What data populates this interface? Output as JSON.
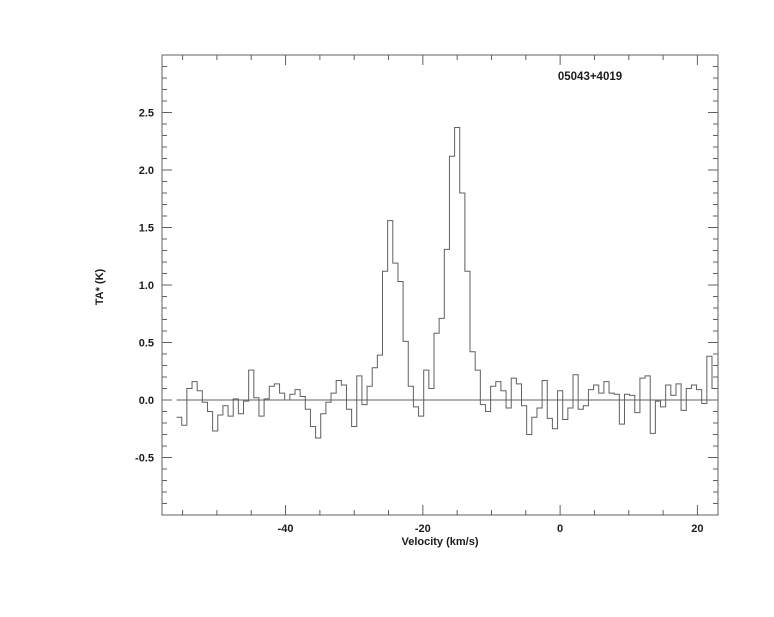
{
  "figure": {
    "background": "#ffffff",
    "line_color": "#606060",
    "axis_color": "#606060",
    "text_color": "#1c1c1c"
  },
  "chart_data": {
    "type": "line",
    "subtype": "histogram-step-spectrum",
    "title": "05043+4019",
    "xlabel": "Velocity (km/s)",
    "ylabel": "TA* (K)",
    "xlim": [
      -58,
      23
    ],
    "ylim": [
      -1.0,
      3.0
    ],
    "x_major_ticks": [
      -40,
      -20,
      0,
      20
    ],
    "x_tick_labels": [
      "-40",
      "-20",
      "0",
      "20"
    ],
    "x_minor_step": 5,
    "y_major_ticks": [
      -0.5,
      0.0,
      0.5,
      1.0,
      1.5,
      2.0,
      2.5
    ],
    "y_tick_labels": [
      "-0.5",
      "0.0",
      "0.5",
      "1.0",
      "1.5",
      "2.0",
      "2.5"
    ],
    "y_minor_step": 0.1,
    "grid": false,
    "legend": null,
    "baseline_y": 0.0,
    "x_start": -55.5,
    "x_step": 0.75,
    "values": [
      -0.15,
      -0.22,
      0.1,
      0.16,
      0.08,
      -0.02,
      -0.1,
      -0.27,
      -0.13,
      -0.05,
      -0.14,
      0.01,
      -0.12,
      -0.01,
      0.26,
      0.02,
      -0.14,
      0.01,
      0.12,
      0.14,
      0.06,
      0.0,
      0.05,
      0.09,
      0.03,
      -0.08,
      -0.23,
      -0.33,
      -0.12,
      -0.02,
      0.06,
      0.17,
      0.13,
      -0.08,
      -0.23,
      0.21,
      -0.04,
      0.12,
      0.28,
      0.39,
      1.12,
      1.56,
      1.19,
      1.03,
      0.51,
      0.12,
      -0.06,
      -0.14,
      0.26,
      0.1,
      0.58,
      0.71,
      1.31,
      2.12,
      2.37,
      1.8,
      1.12,
      0.42,
      0.26,
      -0.04,
      -0.1,
      0.12,
      0.16,
      0.08,
      -0.07,
      0.19,
      0.14,
      -0.05,
      -0.3,
      -0.15,
      -0.07,
      0.17,
      -0.16,
      -0.25,
      0.08,
      -0.17,
      -0.07,
      0.22,
      -0.08,
      -0.05,
      0.09,
      0.13,
      0.06,
      0.16,
      0.06,
      0.05,
      -0.21,
      0.05,
      0.04,
      -0.11,
      0.19,
      0.21,
      -0.29,
      -0.01,
      -0.06,
      0.13,
      0.04,
      0.14,
      -0.09,
      0.1,
      0.13,
      0.09,
      -0.03,
      0.38,
      0.1
    ],
    "notable_peaks": [
      {
        "velocity": -24.75,
        "ta": 1.56
      },
      {
        "velocity": -15.0,
        "ta": 2.37
      }
    ]
  }
}
